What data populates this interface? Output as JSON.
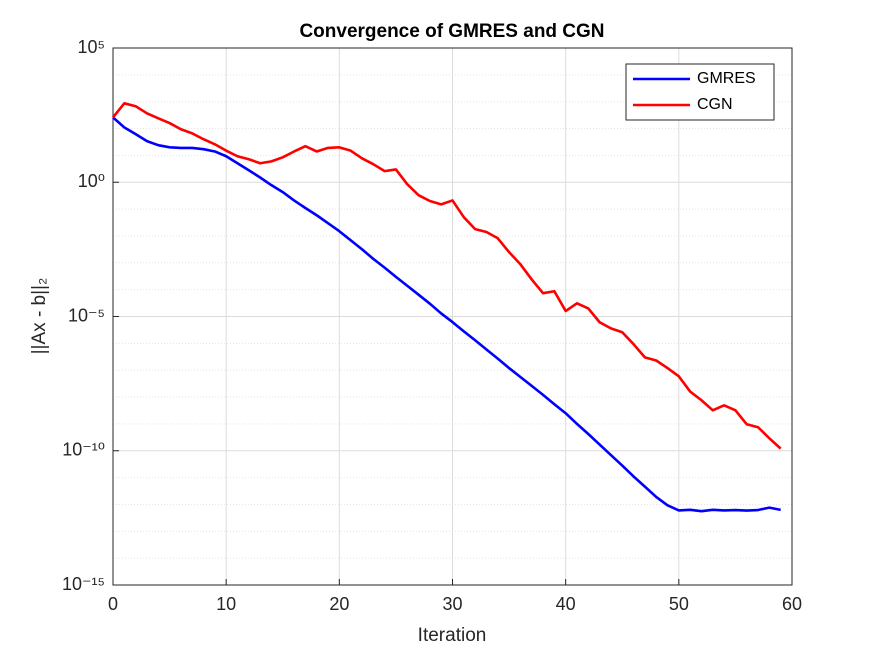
{
  "chart_data": {
    "type": "line",
    "title": "Convergence of GMRES and CGN",
    "xlabel": "Iteration",
    "ylabel": "||Ax - b||₂",
    "x": [
      0,
      1,
      2,
      3,
      4,
      5,
      6,
      7,
      8,
      9,
      10,
      11,
      12,
      13,
      14,
      15,
      16,
      17,
      18,
      19,
      20,
      21,
      22,
      23,
      24,
      25,
      26,
      27,
      28,
      29,
      30,
      31,
      32,
      33,
      34,
      35,
      36,
      37,
      38,
      39,
      40,
      41,
      42,
      43,
      44,
      45,
      46,
      47,
      48,
      49,
      50,
      51,
      52,
      53,
      54,
      55,
      56,
      57,
      58,
      59
    ],
    "series": [
      {
        "name": "GMRES",
        "color": "#0000ff",
        "values": [
          260,
          110,
          62,
          34,
          24,
          20,
          19,
          19,
          17,
          14,
          9.3,
          5.1,
          2.8,
          1.5,
          0.78,
          0.43,
          0.21,
          0.11,
          0.059,
          0.03,
          0.015,
          0.0069,
          0.0032,
          0.0014,
          0.00066,
          0.0003,
          0.00014,
          6.5e-05,
          3e-05,
          1.3e-05,
          6.2e-06,
          2.8e-06,
          1.3e-06,
          5.9e-07,
          2.7e-07,
          1.2e-07,
          5.6e-08,
          2.6e-08,
          1.2e-08,
          5.4e-09,
          2.5e-09,
          1e-09,
          4.2e-10,
          1.7e-10,
          6.9e-11,
          2.8e-11,
          1.1e-11,
          4.6e-12,
          1.9e-12,
          9.3e-13,
          6e-13,
          6.3e-13,
          5.6e-13,
          6.3e-13,
          6e-13,
          6.2e-13,
          5.9e-13,
          6.2e-13,
          7.6e-13,
          6.3e-13
        ]
      },
      {
        "name": "CGN",
        "color": "#ff0000",
        "values": [
          260,
          870,
          680,
          370,
          240,
          160,
          94,
          66,
          40,
          26,
          15,
          9.3,
          7.2,
          5.1,
          6.0,
          8.5,
          14,
          22,
          14,
          19,
          20,
          15,
          7.8,
          4.7,
          2.6,
          3.0,
          0.85,
          0.33,
          0.2,
          0.15,
          0.21,
          0.05,
          0.018,
          0.014,
          0.0082,
          0.0025,
          0.00088,
          0.00024,
          7.4e-05,
          8.7e-05,
          1.6e-05,
          3.1e-05,
          2e-05,
          6.1e-06,
          3.6e-06,
          2.6e-06,
          9.3e-07,
          3e-07,
          2.3e-07,
          1.2e-07,
          5.9e-08,
          1.6e-08,
          7.6e-09,
          3.2e-09,
          4.9e-09,
          3.2e-09,
          9.7e-10,
          7.5e-10,
          2.9e-10,
          1.2e-10
        ]
      }
    ],
    "xlim": [
      0,
      60
    ],
    "xticks": [
      0,
      10,
      20,
      30,
      40,
      50,
      60
    ],
    "ylim": [
      1e-15,
      100000
    ],
    "ylog": true,
    "yticks": [
      {
        "value": 1e-15,
        "label": "10⁻¹⁵"
      },
      {
        "value": 1e-10,
        "label": "10⁻¹⁰"
      },
      {
        "value": 1e-05,
        "label": "10⁻⁵"
      },
      {
        "value": 1,
        "label": "10⁰"
      },
      {
        "value": 100000,
        "label": "10⁵"
      }
    ],
    "yminorticks": [
      1e-14,
      1e-13,
      1e-12,
      1e-11,
      1e-09,
      1e-08,
      1e-07,
      1e-06,
      0.0001,
      0.001,
      0.01,
      0.1,
      10,
      100,
      1000,
      10000
    ],
    "grid": true,
    "minor_grid": true,
    "legend": "northeast"
  }
}
